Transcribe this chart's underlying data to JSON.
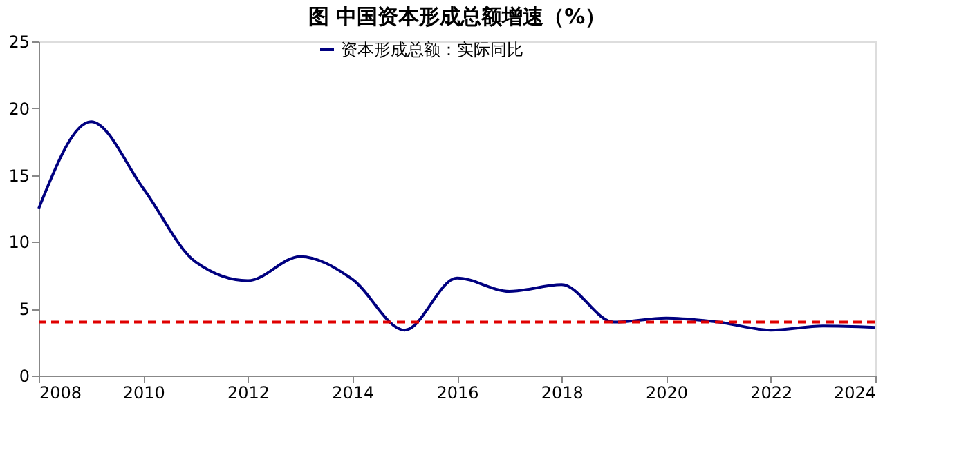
{
  "chart_data": {
    "type": "line",
    "title": "图    中国资本形成总额增速（%）",
    "x": [
      2008,
      2009,
      2010,
      2011,
      2012,
      2013,
      2014,
      2015,
      2016,
      2017,
      2018,
      2019,
      2020,
      2021,
      2022,
      2023,
      2024
    ],
    "series": [
      {
        "name": "资本形成总额：实际同比",
        "color": "#000080",
        "values": [
          12.5,
          19.0,
          14.0,
          8.5,
          7.1,
          8.9,
          7.2,
          3.4,
          7.3,
          6.3,
          6.8,
          4.0,
          4.3,
          4.0,
          3.4,
          3.7,
          3.6
        ]
      }
    ],
    "xlim": [
      2008,
      2024
    ],
    "xticks": [
      2008,
      2010,
      2012,
      2014,
      2016,
      2018,
      2020,
      2022,
      2024
    ],
    "ylim": [
      0,
      25
    ],
    "yticks": [
      0,
      5,
      10,
      15,
      20,
      25
    ],
    "ref_lines": [
      {
        "axis": "y",
        "value": 4,
        "color": "#e00000",
        "line_style": "dashed"
      }
    ],
    "legend": "top",
    "grid": false,
    "marker": "none",
    "line_style": "solid"
  }
}
